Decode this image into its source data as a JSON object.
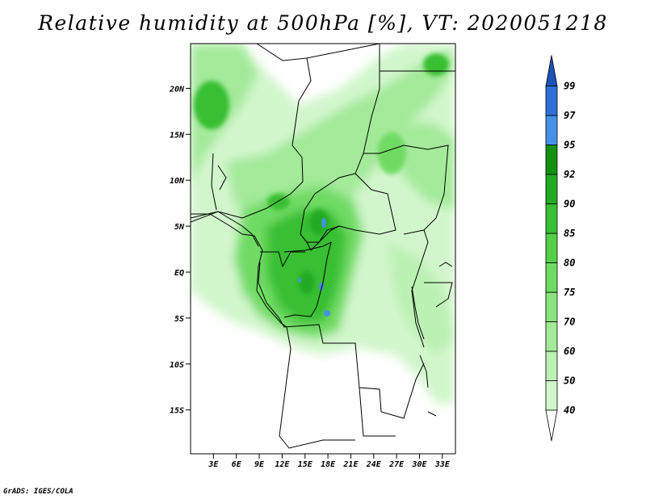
{
  "title": "Relative humidity at 500hPa [%], VT: 2020051218",
  "footer": "GrADS: IGES/COLA",
  "map": {
    "lon_range": [
      0,
      35
    ],
    "lat_range": [
      -20,
      25
    ],
    "lat_ticks": [
      "20N",
      "15N",
      "10N",
      "5N",
      "EQ",
      "5S",
      "10S",
      "15S"
    ],
    "lon_ticks": [
      "3E",
      "6E",
      "9E",
      "12E",
      "15E",
      "18E",
      "21E",
      "24E",
      "27E",
      "30E",
      "33E"
    ]
  },
  "colorbar": {
    "labels": [
      "40",
      "50",
      "60",
      "70",
      "75",
      "80",
      "85",
      "90",
      "92",
      "95",
      "97",
      "99"
    ],
    "colors": [
      "#e8fbe5",
      "#d2f6cc",
      "#bbf1b3",
      "#a3ea99",
      "#8ae37e",
      "#6fdb63",
      "#53d048",
      "#38bf33",
      "#22ab22",
      "#139212",
      "#4690ea",
      "#2f70d8",
      "#1f52b5"
    ]
  }
}
